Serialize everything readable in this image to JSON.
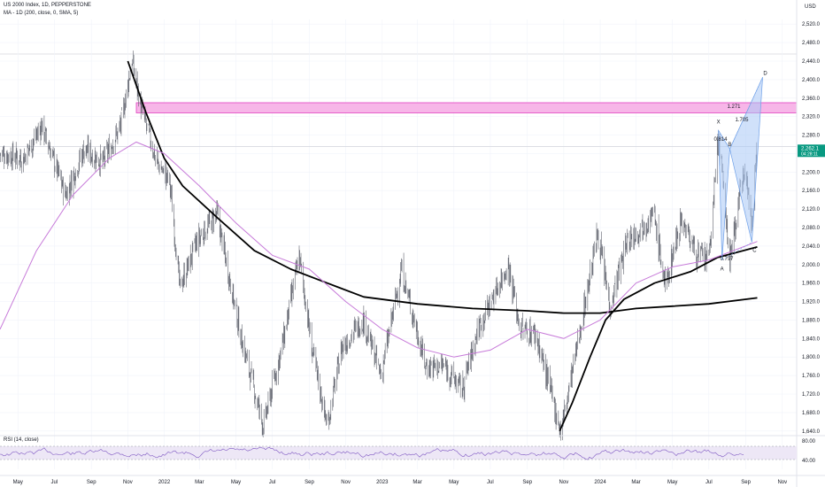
{
  "header": {
    "title": "US 2000 Index, 1D, PEPPERSTONE",
    "indicator": "MA - 1D (200, close, 0, SMA, 5)",
    "currency": "USD"
  },
  "rsi_panel": {
    "label": "RSI (14, close)",
    "scale_labels": [
      "80.00",
      "40.00"
    ]
  },
  "price_tag": {
    "value": "2,262.1",
    "sub": "04:28:11",
    "color": "#089981"
  },
  "colors": {
    "candles": "#5d606b",
    "ma_black": "#000000",
    "ma_purple": "#c77ad9",
    "zone_fill": "#f7b6e8",
    "zone_border": "#e040c0",
    "pattern_fill": "#a9c8f5",
    "rsi_line": "#7e57c2",
    "rsi_band": "#ede7f6"
  },
  "pattern": {
    "points": [
      "X",
      "A",
      "B",
      "C",
      "D"
    ],
    "ratios": [
      "0.814",
      "0.797",
      "1.271",
      "1.705"
    ]
  },
  "chart_data": {
    "type": "candlestick",
    "title": "US 2000 Index, 1D, PEPPERSTONE",
    "y_axis": {
      "ticks": [
        2520,
        2480,
        2440,
        2400,
        2360,
        2320,
        2280,
        2240,
        2200,
        2160,
        2120,
        2080,
        2040,
        2000,
        1960,
        1920,
        1880,
        1840,
        1800,
        1760,
        1720,
        1680,
        1640
      ],
      "tick_labels": [
        "2,520.0",
        "2,480.0",
        "2,440.0",
        "2,400.0",
        "2,360.0",
        "2,320.0",
        "2,280.0",
        "2,240.0",
        "2,200.0",
        "2,160.0",
        "2,120.0",
        "2,080.0",
        "2,040.0",
        "2,000.0",
        "1,960.0",
        "1,920.0",
        "1,880.0",
        "1,840.0",
        "1,800.0",
        "1,760.0",
        "1,720.0",
        "1,680.0",
        "1,640.0"
      ],
      "range": [
        1630,
        2530
      ]
    },
    "x_axis": {
      "tick_labels": [
        "May",
        "Jul",
        "Sep",
        "Nov",
        "2022",
        "Mar",
        "May",
        "Jul",
        "Sep",
        "Nov",
        "2023",
        "Mar",
        "May",
        "Jul",
        "Sep",
        "Nov",
        "2024",
        "Mar",
        "May",
        "Jul",
        "Sep",
        "Nov"
      ]
    },
    "price_path": [
      [
        "2021-04-01",
        2240
      ],
      [
        "2021-05-10",
        2230
      ],
      [
        "2021-06-10",
        2300
      ],
      [
        "2021-07-20",
        2150
      ],
      [
        "2021-08-20",
        2250
      ],
      [
        "2021-09-20",
        2220
      ],
      [
        "2021-10-20",
        2300
      ],
      [
        "2021-11-08",
        2440
      ],
      [
        "2021-11-25",
        2330
      ],
      [
        "2021-12-20",
        2220
      ],
      [
        "2022-01-10",
        2180
      ],
      [
        "2022-01-27",
        1950
      ],
      [
        "2022-02-25",
        2050
      ],
      [
        "2022-03-30",
        2110
      ],
      [
        "2022-05-10",
        1840
      ],
      [
        "2022-06-16",
        1650
      ],
      [
        "2022-07-20",
        1840
      ],
      [
        "2022-08-15",
        2020
      ],
      [
        "2022-09-05",
        1820
      ],
      [
        "2022-10-01",
        1650
      ],
      [
        "2022-10-25",
        1820
      ],
      [
        "2022-11-30",
        1880
      ],
      [
        "2022-12-30",
        1760
      ],
      [
        "2023-02-02",
        1990
      ],
      [
        "2023-03-15",
        1780
      ],
      [
        "2023-04-15",
        1780
      ],
      [
        "2023-05-15",
        1730
      ],
      [
        "2023-06-10",
        1860
      ],
      [
        "2023-07-31",
        2000
      ],
      [
        "2023-08-20",
        1860
      ],
      [
        "2023-09-15",
        1850
      ],
      [
        "2023-10-27",
        1640
      ],
      [
        "2023-11-20",
        1800
      ],
      [
        "2023-12-28",
        2070
      ],
      [
        "2024-01-17",
        1910
      ],
      [
        "2024-02-15",
        2050
      ],
      [
        "2024-03-31",
        2110
      ],
      [
        "2024-04-19",
        1950
      ],
      [
        "2024-05-15",
        2100
      ],
      [
        "2024-06-12",
        2020
      ],
      [
        "2024-07-01",
        2010
      ],
      [
        "2024-07-17",
        2280
      ],
      [
        "2024-08-05",
        2010
      ],
      [
        "2024-08-30",
        2220
      ],
      [
        "2024-09-11",
        2080
      ],
      [
        "2024-09-19",
        2270
      ]
    ],
    "series": [
      {
        "name": "MA - 1D (200, close, 0, SMA, 5)",
        "color": "#000000",
        "values": [
          [
            "2021-11-01",
            2440
          ],
          [
            "2021-12-01",
            2330
          ],
          [
            "2022-01-01",
            2230
          ],
          [
            "2022-02-01",
            2170
          ],
          [
            "2022-04-01",
            2100
          ],
          [
            "2022-06-01",
            2030
          ],
          [
            "2022-08-01",
            1990
          ],
          [
            "2022-10-01",
            1960
          ],
          [
            "2022-12-01",
            1930
          ],
          [
            "2023-03-01",
            1915
          ],
          [
            "2023-06-01",
            1905
          ],
          [
            "2023-09-01",
            1900
          ],
          [
            "2023-11-01",
            1895
          ],
          [
            "2024-01-01",
            1895
          ],
          [
            "2024-03-01",
            1905
          ],
          [
            "2024-05-01",
            1910
          ],
          [
            "2024-07-01",
            1915
          ],
          [
            "2024-09-20",
            1928
          ]
        ]
      },
      {
        "name": "Short MA",
        "color": "#000000",
        "values": [
          [
            "2023-10-25",
            1640
          ],
          [
            "2023-11-15",
            1700
          ],
          [
            "2023-12-15",
            1800
          ],
          [
            "2024-01-10",
            1880
          ],
          [
            "2024-02-10",
            1925
          ],
          [
            "2024-04-01",
            1960
          ],
          [
            "2024-06-01",
            1985
          ],
          [
            "2024-07-15",
            2015
          ],
          [
            "2024-09-20",
            2038
          ]
        ]
      },
      {
        "name": "Purple MA",
        "color": "#c77ad9",
        "values": [
          [
            "2021-04-01",
            1860
          ],
          [
            "2021-06-01",
            2030
          ],
          [
            "2021-08-01",
            2150
          ],
          [
            "2021-10-01",
            2230
          ],
          [
            "2021-11-15",
            2265
          ],
          [
            "2022-01-01",
            2240
          ],
          [
            "2022-03-01",
            2170
          ],
          [
            "2022-05-01",
            2090
          ],
          [
            "2022-07-01",
            2020
          ],
          [
            "2022-09-01",
            1990
          ],
          [
            "2022-11-01",
            1920
          ],
          [
            "2023-01-01",
            1860
          ],
          [
            "2023-03-01",
            1820
          ],
          [
            "2023-05-01",
            1800
          ],
          [
            "2023-07-01",
            1815
          ],
          [
            "2023-09-01",
            1860
          ],
          [
            "2023-11-01",
            1840
          ],
          [
            "2024-01-01",
            1880
          ],
          [
            "2024-03-01",
            1960
          ],
          [
            "2024-05-01",
            1995
          ],
          [
            "2024-07-01",
            2010
          ],
          [
            "2024-09-20",
            2050
          ]
        ]
      }
    ],
    "resistance_zone": [
      2328,
      2350
    ],
    "horizontal_line": 2255
  }
}
